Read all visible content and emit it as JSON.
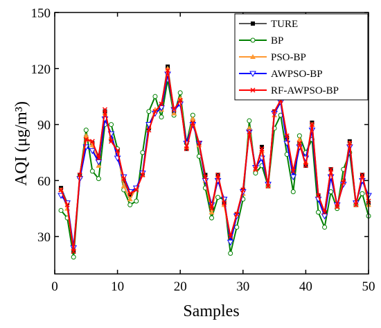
{
  "chart_data": {
    "type": "line",
    "x_label": "Samples",
    "y_label": "AQI (μg/m³)",
    "x": [
      1,
      2,
      3,
      4,
      5,
      6,
      7,
      8,
      9,
      10,
      11,
      12,
      13,
      14,
      15,
      16,
      17,
      18,
      19,
      20,
      21,
      22,
      23,
      24,
      25,
      26,
      27,
      28,
      29,
      30,
      31,
      32,
      33,
      34,
      35,
      36,
      37,
      38,
      39,
      40,
      41,
      42,
      43,
      44,
      45,
      46,
      47,
      48,
      49,
      50
    ],
    "xlim": [
      0,
      50
    ],
    "xticks": [
      0,
      10,
      20,
      30,
      40,
      50
    ],
    "ylim": [
      10,
      150
    ],
    "yticks": [
      30,
      60,
      90,
      120,
      150
    ],
    "legend": "upper right",
    "series": [
      {
        "name": "TURE",
        "color": "#555555",
        "marker_color": "#000000",
        "marker": "square",
        "values": [
          56,
          48,
          22,
          63,
          83,
          80,
          73,
          97,
          82,
          76,
          60,
          52,
          56,
          63,
          88,
          97,
          100,
          121,
          97,
          103,
          77,
          92,
          80,
          63,
          45,
          63,
          48,
          29,
          42,
          55,
          87,
          65,
          78,
          57,
          97,
          103,
          83,
          65,
          80,
          68,
          91,
          52,
          43,
          66,
          46,
          60,
          81,
          47,
          63,
          48
        ]
      },
      {
        "name": "BP",
        "color": "#008000",
        "marker_color": "#008000",
        "marker": "circle",
        "values": [
          44,
          40,
          19,
          62,
          87,
          65,
          61,
          90,
          90,
          77,
          55,
          47,
          49,
          75,
          97,
          105,
          94,
          114,
          95,
          107,
          80,
          95,
          73,
          56,
          40,
          51,
          50,
          21,
          35,
          50,
          92,
          64,
          68,
          57,
          88,
          95,
          74,
          54,
          84,
          75,
          82,
          43,
          35,
          54,
          45,
          66,
          75,
          47,
          53,
          41
        ]
      },
      {
        "name": "PSO-BP",
        "color": "#ff9933",
        "marker_color": "#ff9933",
        "marker": "triangle",
        "values": [
          55,
          45,
          24,
          62,
          84,
          79,
          68,
          96,
          83,
          75,
          57,
          50,
          56,
          63,
          89,
          98,
          98,
          120,
          96,
          104,
          78,
          93,
          79,
          60,
          43,
          62,
          47,
          28,
          42,
          53,
          88,
          66,
          76,
          57,
          95,
          104,
          82,
          63,
          82,
          70,
          90,
          51,
          42,
          64,
          46,
          60,
          80,
          47,
          62,
          47
        ]
      },
      {
        "name": "AWPSO-BP",
        "color": "#0000ff",
        "marker_color": "#0000ff",
        "marker": "down-triangle",
        "values": [
          52,
          48,
          24,
          61,
          78,
          76,
          70,
          93,
          85,
          72,
          62,
          54,
          56,
          64,
          90,
          96,
          99,
          117,
          98,
          101,
          80,
          90,
          80,
          60,
          47,
          60,
          50,
          27,
          41,
          54,
          86,
          67,
          72,
          58,
          96,
          102,
          80,
          62,
          78,
          72,
          87,
          50,
          41,
          62,
          47,
          58,
          78,
          48,
          60,
          52
        ]
      },
      {
        "name": "RF-AWPSO-BP",
        "color": "#ff0000",
        "marker_color": "#ff0000",
        "marker": "x",
        "values": [
          55,
          47,
          22,
          63,
          82,
          81,
          72,
          98,
          81,
          76,
          61,
          53,
          55,
          63,
          87,
          97,
          101,
          119,
          98,
          103,
          77,
          91,
          80,
          62,
          45,
          63,
          48,
          30,
          42,
          55,
          86,
          66,
          77,
          57,
          97,
          103,
          84,
          65,
          80,
          68,
          90,
          52,
          43,
          66,
          46,
          59,
          80,
          47,
          63,
          49
        ]
      }
    ]
  }
}
